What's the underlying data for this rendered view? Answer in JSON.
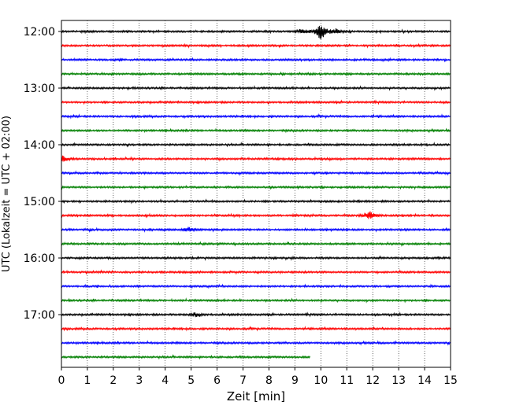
{
  "chart_data": {
    "type": "line",
    "title": "",
    "xlabel": "Zeit  [min]",
    "ylabel": "UTC (Lokalzeit = UTC + 02:00)",
    "xlim": [
      0,
      15
    ],
    "x_ticks": [
      "0",
      "1",
      "2",
      "3",
      "4",
      "5",
      "6",
      "7",
      "8",
      "9",
      "10",
      "11",
      "12",
      "13",
      "14",
      "15"
    ],
    "y_ticks": [
      "12:00",
      "13:00",
      "14:00",
      "15:00",
      "16:00",
      "17:00"
    ],
    "grid": "vertical-dotted",
    "trace_minutes": 15,
    "trace_colors": [
      "#000000",
      "#ff0000",
      "#0000ff",
      "#008000"
    ],
    "traces": [
      {
        "start": "12:00",
        "end_minute": 15,
        "events": [
          {
            "t": 10.0,
            "amp": 12
          },
          {
            "t": 9.3,
            "amp": 3
          },
          {
            "t": 10.6,
            "amp": 3
          }
        ]
      },
      {
        "start": "12:15",
        "end_minute": 15,
        "events": []
      },
      {
        "start": "12:30",
        "end_minute": 15,
        "events": []
      },
      {
        "start": "12:45",
        "end_minute": 15,
        "events": []
      },
      {
        "start": "13:00",
        "end_minute": 15,
        "events": []
      },
      {
        "start": "13:15",
        "end_minute": 15,
        "events": []
      },
      {
        "start": "13:30",
        "end_minute": 15,
        "events": []
      },
      {
        "start": "13:45",
        "end_minute": 15,
        "events": []
      },
      {
        "start": "14:00",
        "end_minute": 15,
        "events": []
      },
      {
        "start": "14:15",
        "end_minute": 15,
        "events": [
          {
            "t": 0.05,
            "amp": 4
          }
        ]
      },
      {
        "start": "14:30",
        "end_minute": 15,
        "events": []
      },
      {
        "start": "14:45",
        "end_minute": 15,
        "events": []
      },
      {
        "start": "15:00",
        "end_minute": 15,
        "events": []
      },
      {
        "start": "15:15",
        "end_minute": 15,
        "events": [
          {
            "t": 11.9,
            "amp": 6
          }
        ]
      },
      {
        "start": "15:30",
        "end_minute": 15,
        "events": [
          {
            "t": 4.9,
            "amp": 3
          }
        ]
      },
      {
        "start": "15:45",
        "end_minute": 15,
        "events": []
      },
      {
        "start": "16:00",
        "end_minute": 15,
        "events": []
      },
      {
        "start": "16:15",
        "end_minute": 15,
        "events": []
      },
      {
        "start": "16:30",
        "end_minute": 15,
        "events": []
      },
      {
        "start": "16:45",
        "end_minute": 15,
        "events": []
      },
      {
        "start": "17:00",
        "end_minute": 15,
        "events": [
          {
            "t": 5.2,
            "amp": 3
          }
        ]
      },
      {
        "start": "17:15",
        "end_minute": 15,
        "events": []
      },
      {
        "start": "17:30",
        "end_minute": 15,
        "events": []
      },
      {
        "start": "17:45",
        "end_minute": 9.6,
        "events": []
      }
    ]
  }
}
